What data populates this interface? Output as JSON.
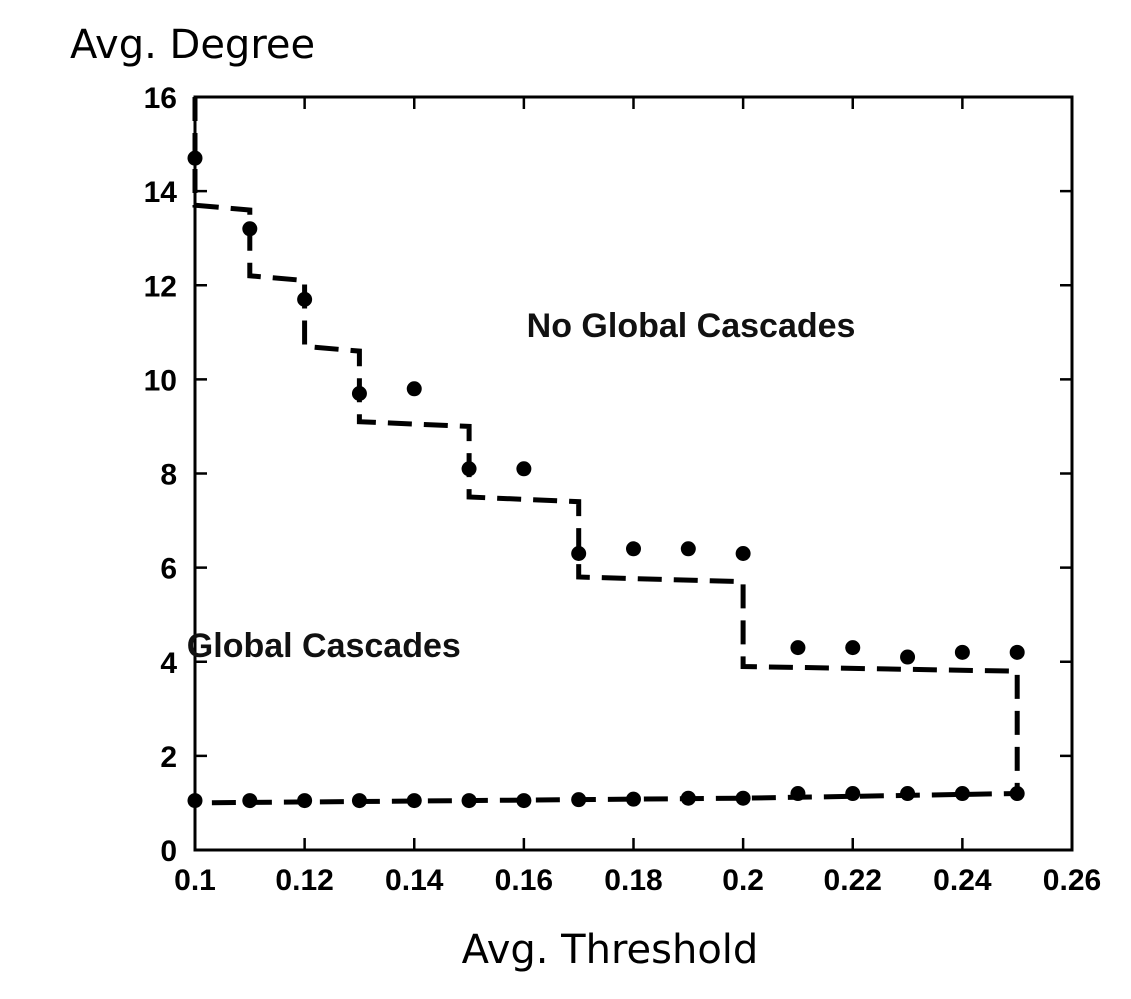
{
  "chart_data": {
    "type": "scatter",
    "xlabel": "Avg. Threshold",
    "ylabel": "Avg. Degree",
    "xlim": [
      0.1,
      0.26
    ],
    "ylim": [
      0,
      16
    ],
    "xticks": [
      0.1,
      0.12,
      0.14,
      0.16,
      0.18,
      0.2,
      0.22,
      0.24,
      0.26
    ],
    "xtick_labels": [
      "0.1",
      "0.12",
      "0.14",
      "0.16",
      "0.18",
      "0.2",
      "0.22",
      "0.24",
      "0.26"
    ],
    "yticks": [
      0,
      2,
      4,
      6,
      8,
      10,
      12,
      14,
      16
    ],
    "ytick_labels": [
      "0",
      "2",
      "4",
      "6",
      "8",
      "10",
      "12",
      "14",
      "16"
    ],
    "grid": false,
    "annotations": [
      {
        "text": "No Global Cascades",
        "x": 0.1905,
        "y": 10.9
      },
      {
        "text": "Global Cascades",
        "x": 0.1235,
        "y": 4.1
      }
    ],
    "series": [
      {
        "style": "points",
        "x": [
          0.1,
          0.11,
          0.12,
          0.13,
          0.14,
          0.15,
          0.16,
          0.17,
          0.18,
          0.19,
          0.2,
          0.21,
          0.22,
          0.23,
          0.24,
          0.25
        ],
        "y": [
          14.7,
          13.2,
          11.7,
          9.7,
          9.8,
          8.1,
          8.1,
          6.3,
          6.4,
          6.4,
          6.3,
          4.3,
          4.3,
          4.1,
          4.2,
          4.2
        ]
      },
      {
        "style": "points",
        "x": [
          0.1,
          0.11,
          0.12,
          0.13,
          0.14,
          0.15,
          0.16,
          0.17,
          0.18,
          0.19,
          0.2,
          0.21,
          0.22,
          0.23,
          0.24,
          0.25
        ],
        "y": [
          1.05,
          1.05,
          1.05,
          1.05,
          1.05,
          1.05,
          1.05,
          1.07,
          1.08,
          1.1,
          1.1,
          1.2,
          1.2,
          1.2,
          1.2,
          1.2
        ]
      },
      {
        "style": "dashed-step",
        "x": [
          0.1,
          0.1,
          0.11,
          0.11,
          0.12,
          0.12,
          0.13,
          0.13,
          0.15,
          0.15,
          0.17,
          0.17,
          0.2,
          0.2,
          0.25,
          0.25,
          0.2,
          0.1,
          0.1
        ],
        "y": [
          16,
          13.7,
          13.6,
          12.2,
          12.1,
          10.7,
          10.6,
          9.1,
          9.0,
          7.5,
          7.4,
          5.8,
          5.7,
          3.9,
          3.8,
          1.2,
          1.1,
          1.0,
          1.0
        ]
      }
    ]
  }
}
